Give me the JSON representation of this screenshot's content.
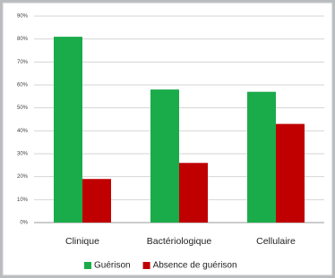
{
  "chart_data": {
    "type": "bar",
    "categories": [
      "Clinique",
      "Bactériologique",
      "Cellulaire"
    ],
    "series": [
      {
        "name": "Guérison",
        "color": "#1aac4a",
        "values": [
          81,
          58,
          57
        ]
      },
      {
        "name": "Absence de guérison",
        "color": "#c00000",
        "values": [
          19,
          26,
          43
        ]
      }
    ],
    "ylim": [
      0,
      90
    ],
    "yticks": [
      {
        "value": 0,
        "label": "0%"
      },
      {
        "value": 10,
        "label": "10%"
      },
      {
        "value": 20,
        "label": "20%"
      },
      {
        "value": 30,
        "label": "30%"
      },
      {
        "value": 40,
        "label": "40%"
      },
      {
        "value": 50,
        "label": "50%"
      },
      {
        "value": 60,
        "label": "60%"
      },
      {
        "value": 70,
        "label": "70%"
      },
      {
        "value": 80,
        "label": "80%"
      },
      {
        "value": 90,
        "label": "90%"
      }
    ],
    "grid": true,
    "legend": "bottom"
  }
}
